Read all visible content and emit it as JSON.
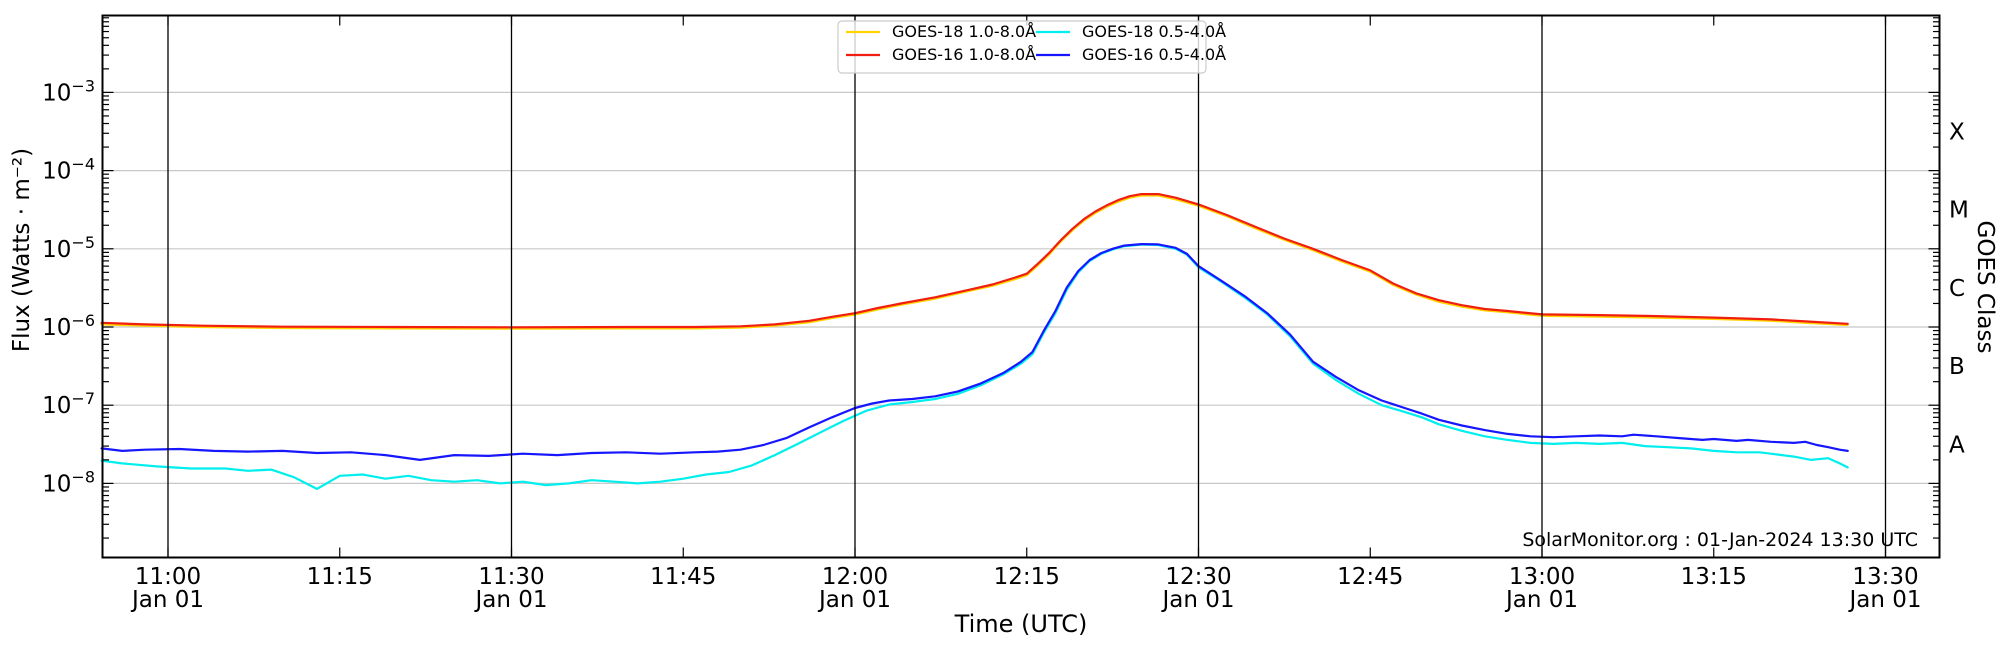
{
  "page": {
    "background": "#ffffff"
  },
  "chart_data": {
    "type": "line",
    "title": "",
    "xlabel": "Time (UTC)",
    "ylabel": "Flux (Watts · m⁻²)",
    "ylabel_right": "GOES Class",
    "watermark": "SolarMonitor.org : 01-Jan-2024 13:30 UTC",
    "grid": true,
    "legend_position": "top-center",
    "axis_color": "#000000",
    "grid_color": "#c8c8c8",
    "ylim": [
      1.1e-09,
      0.0098
    ],
    "x_range_utc": [
      "10:54",
      "13:35"
    ],
    "y_tick_exponents": [
      -3,
      -4,
      -5,
      -6,
      -7,
      -8
    ],
    "y_tick_labels": [
      "10⁻³",
      "10⁻⁴",
      "10⁻⁵",
      "10⁻⁶",
      "10⁻⁷",
      "10⁻⁸"
    ],
    "x_ticks": [
      {
        "t": 660,
        "label": "11:00",
        "sub": "Jan 01"
      },
      {
        "t": 675,
        "label": "11:15"
      },
      {
        "t": 690,
        "label": "11:30",
        "sub": "Jan 01"
      },
      {
        "t": 705,
        "label": "11:45"
      },
      {
        "t": 720,
        "label": "12:00",
        "sub": "Jan 01"
      },
      {
        "t": 735,
        "label": "12:15"
      },
      {
        "t": 750,
        "label": "12:30",
        "sub": "Jan 01"
      },
      {
        "t": 765,
        "label": "12:45"
      },
      {
        "t": 780,
        "label": "13:00",
        "sub": "Jan 01"
      },
      {
        "t": 795,
        "label": "13:15"
      },
      {
        "t": 810,
        "label": "13:30",
        "sub": "Jan 01"
      }
    ],
    "goes_classes": [
      {
        "label": "A",
        "flux_range": [
          1e-08,
          1e-07
        ]
      },
      {
        "label": "B",
        "flux_range": [
          1e-07,
          1e-06
        ]
      },
      {
        "label": "C",
        "flux_range": [
          1e-06,
          1e-05
        ]
      },
      {
        "label": "M",
        "flux_range": [
          1e-05,
          0.0001
        ]
      },
      {
        "label": "X",
        "flux_range": [
          0.0001,
          0.001
        ]
      }
    ],
    "series": [
      {
        "id": "goes18-long",
        "name": "GOES-18 1.0-8.0Å",
        "color": "#ffd400",
        "width": 2.2,
        "points": [
          [
            654.2,
            1.08e-06
          ],
          [
            658,
            1.04e-06
          ],
          [
            663,
            1e-06
          ],
          [
            670,
            9.7e-07
          ],
          [
            680,
            9.6e-07
          ],
          [
            690,
            9.5e-07
          ],
          [
            700,
            9.6e-07
          ],
          [
            706,
            9.6e-07
          ],
          [
            710,
            9.8e-07
          ],
          [
            713,
            1.04e-06
          ],
          [
            716,
            1.15e-06
          ],
          [
            718,
            1.3e-06
          ],
          [
            720,
            1.44e-06
          ],
          [
            722,
            1.68e-06
          ],
          [
            724,
            1.92e-06
          ],
          [
            727,
            2.3e-06
          ],
          [
            730,
            2.9e-06
          ],
          [
            732,
            3.36e-06
          ],
          [
            734,
            4.1e-06
          ],
          [
            735,
            4.6e-06
          ],
          [
            736,
            6.2e-06
          ],
          [
            737,
            8.6e-06
          ],
          [
            738,
            1.25e-05
          ],
          [
            739,
            1.73e-05
          ],
          [
            740,
            2.3e-05
          ],
          [
            741,
            2.88e-05
          ],
          [
            742,
            3.46e-05
          ],
          [
            743,
            4e-05
          ],
          [
            744,
            4.5e-05
          ],
          [
            745,
            4.8e-05
          ],
          [
            746.5,
            4.8e-05
          ],
          [
            748,
            4.3e-05
          ],
          [
            750,
            3.55e-05
          ],
          [
            752.5,
            2.6e-05
          ],
          [
            755,
            1.82e-05
          ],
          [
            757.5,
            1.3e-05
          ],
          [
            760,
            9.6e-06
          ],
          [
            762.5,
            6.9e-06
          ],
          [
            765,
            5.1e-06
          ],
          [
            767,
            3.45e-06
          ],
          [
            769,
            2.6e-06
          ],
          [
            771,
            2.1e-06
          ],
          [
            773,
            1.82e-06
          ],
          [
            775,
            1.63e-06
          ],
          [
            777,
            1.54e-06
          ],
          [
            780,
            1.39e-06
          ],
          [
            785,
            1.36e-06
          ],
          [
            790,
            1.32e-06
          ],
          [
            795,
            1.27e-06
          ],
          [
            800,
            1.2e-06
          ],
          [
            803,
            1.13e-06
          ],
          [
            806.7,
            1.06e-06
          ]
        ]
      },
      {
        "id": "goes16-long",
        "name": "GOES-16 1.0-8.0Å",
        "color": "#f01e0e",
        "width": 2.2,
        "points": [
          [
            654.2,
            1.13e-06
          ],
          [
            658,
            1.08e-06
          ],
          [
            663,
            1.04e-06
          ],
          [
            670,
            1.01e-06
          ],
          [
            680,
            1e-06
          ],
          [
            690,
            9.9e-07
          ],
          [
            700,
            1e-06
          ],
          [
            706,
            1e-06
          ],
          [
            710,
            1.02e-06
          ],
          [
            713,
            1.08e-06
          ],
          [
            716,
            1.2e-06
          ],
          [
            718,
            1.35e-06
          ],
          [
            720,
            1.5e-06
          ],
          [
            722,
            1.75e-06
          ],
          [
            724,
            2e-06
          ],
          [
            727,
            2.4e-06
          ],
          [
            730,
            3e-06
          ],
          [
            732,
            3.5e-06
          ],
          [
            734,
            4.3e-06
          ],
          [
            735,
            4.8e-06
          ],
          [
            736,
            6.5e-06
          ],
          [
            737,
            9e-06
          ],
          [
            738,
            1.3e-05
          ],
          [
            739,
            1.8e-05
          ],
          [
            740,
            2.4e-05
          ],
          [
            741,
            3e-05
          ],
          [
            742,
            3.6e-05
          ],
          [
            743,
            4.2e-05
          ],
          [
            744,
            4.7e-05
          ],
          [
            745,
            5e-05
          ],
          [
            746.5,
            5e-05
          ],
          [
            748,
            4.5e-05
          ],
          [
            750,
            3.7e-05
          ],
          [
            752.5,
            2.7e-05
          ],
          [
            755,
            1.9e-05
          ],
          [
            757.5,
            1.35e-05
          ],
          [
            760,
            1e-05
          ],
          [
            762.5,
            7.2e-06
          ],
          [
            765,
            5.3e-06
          ],
          [
            767,
            3.6e-06
          ],
          [
            769,
            2.7e-06
          ],
          [
            771,
            2.2e-06
          ],
          [
            773,
            1.9e-06
          ],
          [
            775,
            1.7e-06
          ],
          [
            777,
            1.6e-06
          ],
          [
            780,
            1.45e-06
          ],
          [
            785,
            1.42e-06
          ],
          [
            790,
            1.38e-06
          ],
          [
            795,
            1.32e-06
          ],
          [
            800,
            1.25e-06
          ],
          [
            803,
            1.18e-06
          ],
          [
            806.7,
            1.1e-06
          ]
        ]
      },
      {
        "id": "goes18-short",
        "name": "GOES-18 0.5-4.0Å",
        "color": "#00eeee",
        "width": 2.2,
        "points": [
          [
            654.2,
            1.95e-08
          ],
          [
            656,
            1.8e-08
          ],
          [
            659,
            1.65e-08
          ],
          [
            662,
            1.55e-08
          ],
          [
            665,
            1.55e-08
          ],
          [
            667,
            1.45e-08
          ],
          [
            669,
            1.5e-08
          ],
          [
            671,
            1.2e-08
          ],
          [
            673,
            8.5e-09
          ],
          [
            675,
            1.25e-08
          ],
          [
            677,
            1.3e-08
          ],
          [
            679,
            1.15e-08
          ],
          [
            681,
            1.25e-08
          ],
          [
            683,
            1.1e-08
          ],
          [
            685,
            1.05e-08
          ],
          [
            687,
            1.1e-08
          ],
          [
            689,
            1e-08
          ],
          [
            691,
            1.05e-08
          ],
          [
            693,
            9.5e-09
          ],
          [
            695,
            1e-08
          ],
          [
            697,
            1.1e-08
          ],
          [
            699,
            1.05e-08
          ],
          [
            701,
            1e-08
          ],
          [
            703,
            1.05e-08
          ],
          [
            705,
            1.15e-08
          ],
          [
            707,
            1.3e-08
          ],
          [
            709,
            1.4e-08
          ],
          [
            711,
            1.7e-08
          ],
          [
            713,
            2.3e-08
          ],
          [
            715,
            3.2e-08
          ],
          [
            717,
            4.5e-08
          ],
          [
            719,
            6.3e-08
          ],
          [
            721,
            8.5e-08
          ],
          [
            723,
            1.02e-07
          ],
          [
            725,
            1.1e-07
          ],
          [
            727,
            1.2e-07
          ],
          [
            729,
            1.4e-07
          ],
          [
            731,
            1.8e-07
          ],
          [
            733,
            2.5e-07
          ],
          [
            734.5,
            3.4e-07
          ],
          [
            735.5,
            4.5e-07
          ],
          [
            736.5,
            8.5e-07
          ],
          [
            737.5,
            1.5e-06
          ],
          [
            738.5,
            3e-06
          ],
          [
            739.5,
            5e-06
          ],
          [
            740.5,
            7e-06
          ],
          [
            741.5,
            8.6e-06
          ],
          [
            742.5,
            9.8e-06
          ],
          [
            743.5,
            1.08e-05
          ],
          [
            745,
            1.13e-05
          ],
          [
            746.5,
            1.12e-05
          ],
          [
            748,
            1e-05
          ],
          [
            749,
            8.4e-06
          ],
          [
            750,
            5.8e-06
          ],
          [
            752,
            3.8e-06
          ],
          [
            754,
            2.4e-06
          ],
          [
            756,
            1.45e-06
          ],
          [
            758,
            7.6e-07
          ],
          [
            760,
            3.4e-07
          ],
          [
            762,
            2.1e-07
          ],
          [
            764,
            1.4e-07
          ],
          [
            766,
            1e-07
          ],
          [
            768,
            8.2e-08
          ],
          [
            769.5,
            7e-08
          ],
          [
            771,
            5.7e-08
          ],
          [
            773,
            4.7e-08
          ],
          [
            775,
            4e-08
          ],
          [
            777,
            3.6e-08
          ],
          [
            779,
            3.3e-08
          ],
          [
            781,
            3.2e-08
          ],
          [
            783,
            3.3e-08
          ],
          [
            785,
            3.2e-08
          ],
          [
            787,
            3.3e-08
          ],
          [
            789,
            3e-08
          ],
          [
            791,
            2.9e-08
          ],
          [
            793,
            2.8e-08
          ],
          [
            795,
            2.6e-08
          ],
          [
            797,
            2.5e-08
          ],
          [
            799,
            2.5e-08
          ],
          [
            800,
            2.4e-08
          ],
          [
            802,
            2.2e-08
          ],
          [
            803.5,
            2e-08
          ],
          [
            805,
            2.1e-08
          ],
          [
            806,
            1.8e-08
          ],
          [
            806.7,
            1.6e-08
          ]
        ]
      },
      {
        "id": "goes16-short",
        "name": "GOES-16 0.5-4.0Å",
        "color": "#1616ff",
        "width": 2.2,
        "points": [
          [
            654.2,
            2.8e-08
          ],
          [
            656,
            2.6e-08
          ],
          [
            658,
            2.7e-08
          ],
          [
            661,
            2.75e-08
          ],
          [
            664,
            2.6e-08
          ],
          [
            667,
            2.55e-08
          ],
          [
            670,
            2.6e-08
          ],
          [
            673,
            2.45e-08
          ],
          [
            676,
            2.5e-08
          ],
          [
            679,
            2.3e-08
          ],
          [
            682,
            2e-08
          ],
          [
            685,
            2.3e-08
          ],
          [
            688,
            2.25e-08
          ],
          [
            691,
            2.4e-08
          ],
          [
            694,
            2.3e-08
          ],
          [
            697,
            2.45e-08
          ],
          [
            700,
            2.5e-08
          ],
          [
            703,
            2.4e-08
          ],
          [
            706,
            2.5e-08
          ],
          [
            708,
            2.55e-08
          ],
          [
            710,
            2.7e-08
          ],
          [
            712,
            3.1e-08
          ],
          [
            714,
            3.8e-08
          ],
          [
            716,
            5.2e-08
          ],
          [
            718,
            7e-08
          ],
          [
            720,
            9.2e-08
          ],
          [
            721.5,
            1.05e-07
          ],
          [
            723,
            1.15e-07
          ],
          [
            725,
            1.2e-07
          ],
          [
            727,
            1.3e-07
          ],
          [
            729,
            1.5e-07
          ],
          [
            731,
            1.9e-07
          ],
          [
            733,
            2.6e-07
          ],
          [
            734.5,
            3.6e-07
          ],
          [
            735.5,
            4.8e-07
          ],
          [
            736.5,
            9e-07
          ],
          [
            737.5,
            1.6e-06
          ],
          [
            738.5,
            3.2e-06
          ],
          [
            739.5,
            5.2e-06
          ],
          [
            740.5,
            7.2e-06
          ],
          [
            741.5,
            8.8e-06
          ],
          [
            742.5,
            1e-05
          ],
          [
            743.5,
            1.1e-05
          ],
          [
            745,
            1.15e-05
          ],
          [
            746.5,
            1.14e-05
          ],
          [
            748,
            1.03e-05
          ],
          [
            749,
            8.6e-06
          ],
          [
            750,
            6e-06
          ],
          [
            752,
            3.9e-06
          ],
          [
            754,
            2.5e-06
          ],
          [
            756,
            1.5e-06
          ],
          [
            758,
            8e-07
          ],
          [
            760,
            3.6e-07
          ],
          [
            762,
            2.3e-07
          ],
          [
            764,
            1.55e-07
          ],
          [
            766,
            1.15e-07
          ],
          [
            768,
            9.2e-08
          ],
          [
            769.5,
            7.8e-08
          ],
          [
            771,
            6.5e-08
          ],
          [
            773,
            5.5e-08
          ],
          [
            775,
            4.8e-08
          ],
          [
            777,
            4.3e-08
          ],
          [
            779,
            4e-08
          ],
          [
            781,
            3.9e-08
          ],
          [
            783,
            4e-08
          ],
          [
            785,
            4.1e-08
          ],
          [
            787,
            4e-08
          ],
          [
            788,
            4.2e-08
          ],
          [
            790,
            4e-08
          ],
          [
            792,
            3.8e-08
          ],
          [
            794,
            3.6e-08
          ],
          [
            795,
            3.7e-08
          ],
          [
            797,
            3.5e-08
          ],
          [
            798,
            3.6e-08
          ],
          [
            800,
            3.4e-08
          ],
          [
            802,
            3.3e-08
          ],
          [
            803,
            3.4e-08
          ],
          [
            804,
            3.1e-08
          ],
          [
            805,
            2.9e-08
          ],
          [
            806,
            2.7e-08
          ],
          [
            806.7,
            2.6e-08
          ]
        ]
      }
    ]
  }
}
